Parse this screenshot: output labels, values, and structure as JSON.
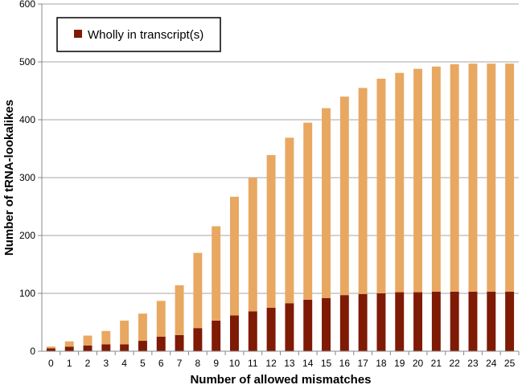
{
  "chart_data": {
    "type": "bar",
    "stacked": true,
    "title": "",
    "xlabel": "Number of allowed mismatches",
    "ylabel": "Number of tRNA-lookalikes",
    "ylim": [
      0,
      600
    ],
    "yticks": [
      0,
      100,
      200,
      300,
      400,
      500,
      600
    ],
    "grid": true,
    "legend": {
      "position": "top-left"
    },
    "categories": [
      "0",
      "1",
      "2",
      "3",
      "4",
      "5",
      "6",
      "7",
      "8",
      "9",
      "10",
      "11",
      "12",
      "13",
      "14",
      "15",
      "16",
      "17",
      "18",
      "19",
      "20",
      "21",
      "22",
      "23",
      "24",
      "25"
    ],
    "series": [
      {
        "name": "Wholly in transcript(s)",
        "color": "#7f1a05",
        "values": [
          5,
          8,
          10,
          12,
          12,
          18,
          25,
          28,
          40,
          53,
          62,
          69,
          75,
          83,
          89,
          92,
          97,
          99,
          100,
          102,
          102,
          103,
          103,
          103,
          103,
          103
        ]
      },
      {
        "name": "",
        "color": "#e8a862",
        "values": [
          3,
          9,
          17,
          23,
          41,
          47,
          62,
          86,
          130,
          163,
          205,
          231,
          264,
          286,
          306,
          328,
          343,
          356,
          371,
          379,
          386,
          389,
          393,
          394,
          394,
          394
        ]
      }
    ]
  }
}
